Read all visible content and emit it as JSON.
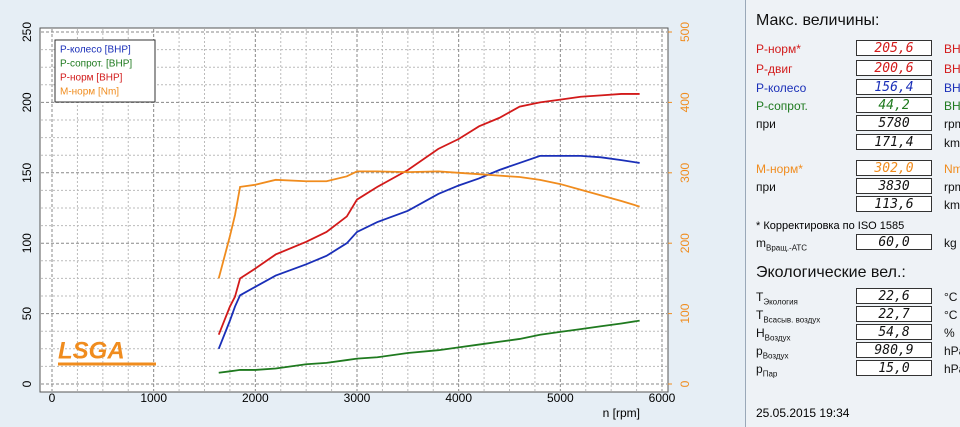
{
  "chart_data": {
    "type": "line",
    "xlabel": "n [rpm]",
    "x": [
      1640,
      1750,
      1800,
      1850,
      2000,
      2200,
      2500,
      2700,
      2900,
      3000,
      3200,
      3500,
      3800,
      4000,
      4200,
      4400,
      4600,
      4800,
      5000,
      5200,
      5400,
      5600,
      5780
    ],
    "series": [
      {
        "name": "Р-колесо [BHP]",
        "color": "#1a2fb8",
        "values": [
          25,
          45,
          55,
          63,
          69,
          77,
          85,
          91,
          100,
          108,
          115,
          123,
          135,
          141,
          146,
          152,
          157,
          162,
          162,
          162,
          161,
          159,
          157
        ]
      },
      {
        "name": "Р-сопрот. [BHP]",
        "color": "#1f7a1f",
        "values": [
          8,
          9,
          9.5,
          10,
          10,
          11,
          14,
          15,
          17,
          18,
          19,
          22,
          24,
          26,
          28,
          30,
          32,
          35,
          37,
          39,
          41,
          43,
          45
        ]
      },
      {
        "name": "Р-норм [BHP]",
        "color": "#d21a1a",
        "values": [
          35,
          55,
          62,
          75,
          82,
          92,
          101,
          108,
          119,
          131,
          140,
          152,
          167,
          174,
          183,
          189,
          197,
          200,
          202,
          204,
          205,
          206,
          206
        ]
      },
      {
        "name": "М-норм [Nm]",
        "color": "#f08c1e",
        "axis": "y2",
        "values": [
          150,
          210,
          240,
          280,
          283,
          290,
          288,
          288,
          295,
          302,
          302,
          301,
          302,
          300,
          298,
          296,
          294,
          290,
          284,
          276,
          268,
          260,
          252
        ]
      }
    ],
    "xlim": [
      0,
      6000
    ],
    "xticks": [
      0,
      1000,
      2000,
      3000,
      4000,
      5000,
      6000
    ],
    "ylim": [
      0,
      250
    ],
    "yticks": [
      0,
      50,
      100,
      150,
      200,
      250
    ],
    "y2lim": [
      0,
      500
    ],
    "y2ticks": [
      0,
      100,
      200,
      300,
      400,
      500
    ],
    "grid": true,
    "legend": "upper left",
    "logo": "LSGA"
  },
  "panel": {
    "max_title": "Макс. величины:",
    "max_rows": [
      {
        "label": "Р-норм*",
        "value": "205,6",
        "unit": "BHP",
        "color": "#d21a1a"
      },
      {
        "label": "Р-двиг",
        "value": "200,6",
        "unit": "BHP",
        "color": "#d21a1a"
      },
      {
        "label": "Р-колесо",
        "value": "156,4",
        "unit": "BHP",
        "color": "#1a2fb8"
      },
      {
        "label": "Р-сопрот.",
        "value": "44,2",
        "unit": "BHP",
        "color": "#1f7a1f"
      },
      {
        "label": "при",
        "value": "5780",
        "unit": "rpm",
        "color": "#111111"
      },
      {
        "value": "171,4",
        "unit": "km/h",
        "color": "#111111"
      },
      {
        "label": "М-норм*",
        "value": "302,0",
        "unit": "Nm",
        "color": "#f08c1e"
      },
      {
        "label": "при",
        "value": "3830",
        "unit": "rpm",
        "color": "#111111"
      },
      {
        "value": "113,6",
        "unit": "km/h",
        "color": "#111111"
      }
    ],
    "note": "* Корректировка по ISO 1585",
    "mass": {
      "label": "m",
      "sub": "Вращ.-АТС",
      "value": "60,0",
      "unit": "kg"
    },
    "eco_title": "Экологические вел.:",
    "eco_rows": [
      {
        "label": "T",
        "sub": "Экология",
        "value": "22,6",
        "unit": "°C"
      },
      {
        "label": "T",
        "sub": "Всасыв. воздух",
        "value": "22,7",
        "unit": "°C"
      },
      {
        "label": "H",
        "sub": "Воздух",
        "value": "54,8",
        "unit": "%"
      },
      {
        "label": "p",
        "sub": "Воздух",
        "value": "980,9",
        "unit": "hPa"
      },
      {
        "label": "p",
        "sub": "Пар",
        "value": "15,0",
        "unit": "hPa"
      }
    ],
    "date": "25.05.2015  19:34"
  }
}
